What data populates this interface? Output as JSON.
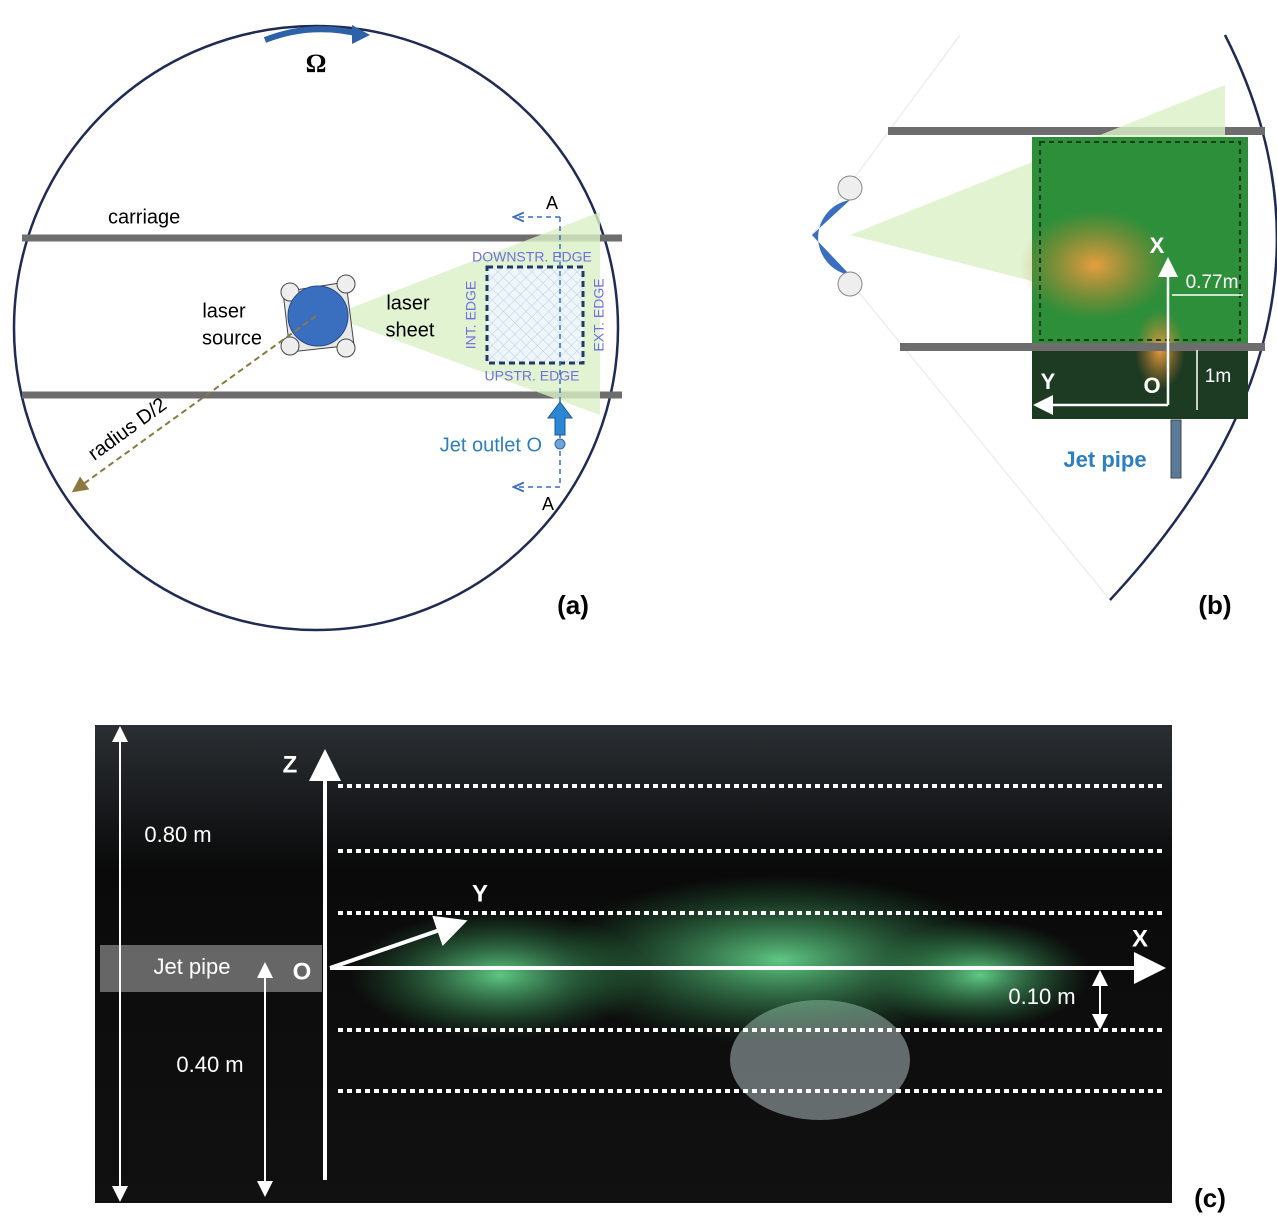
{
  "panel_a": {
    "omega": "Ω",
    "carriage": "carriage",
    "laser_source": [
      "laser",
      "source"
    ],
    "laser_sheet": [
      "laser",
      "sheet"
    ],
    "edges": {
      "downstream": "DOWNSTR. EDGE",
      "upstream": "UPSTR. EDGE",
      "internal": "INT. EDGE",
      "external": "EXT. EDGE"
    },
    "section_markers": [
      "A",
      "A"
    ],
    "jet_outlet": "Jet outlet O",
    "radius": "radius D/2",
    "label": "(a)"
  },
  "panel_b": {
    "x_axis": "X",
    "y_axis": "Y",
    "origin": "O",
    "width": "0.77m",
    "offset": "1m",
    "jet_pipe": "Jet pipe",
    "label": "(b)"
  },
  "panel_c": {
    "z_axis": "Z",
    "y_axis": "Y",
    "x_axis": "X",
    "origin": "O",
    "jet_pipe": "Jet pipe",
    "depth": "0.80 m",
    "pipe_height": "0.40 m",
    "spacing": "0.10 m",
    "label": "(c)"
  }
}
